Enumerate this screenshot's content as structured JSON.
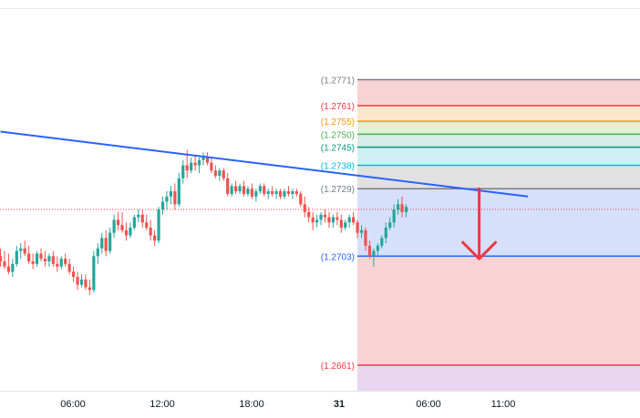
{
  "chart_data": {
    "type": "candlestick",
    "instrument": "",
    "title": "",
    "xlabel": "",
    "ylabel": "",
    "x_axis_labels": [
      "06:00",
      "12:00",
      "18:00",
      "31",
      "06:00",
      "11:00"
    ],
    "ylim": [
      1.2645,
      1.2783
    ],
    "grid": false,
    "colors": {
      "up": "#26a69a",
      "down": "#ef5350",
      "trendline": "#2962ff",
      "arrow": "#f23645",
      "price_line": "#f23645"
    },
    "candles_ohlc": [
      [
        1.2703,
        1.2706,
        1.2699,
        1.2701
      ],
      [
        1.2701,
        1.2705,
        1.2698,
        1.2699
      ],
      [
        1.2699,
        1.2704,
        1.2696,
        1.2697
      ],
      [
        1.2697,
        1.2702,
        1.2695,
        1.27
      ],
      [
        1.27,
        1.2707,
        1.2699,
        1.2705
      ],
      [
        1.2705,
        1.2708,
        1.2702,
        1.2706
      ],
      [
        1.2706,
        1.2709,
        1.2703,
        1.2704
      ],
      [
        1.2704,
        1.2707,
        1.27,
        1.2701
      ],
      [
        1.2701,
        1.2704,
        1.2698,
        1.27
      ],
      [
        1.27,
        1.2705,
        1.2699,
        1.2704
      ],
      [
        1.2704,
        1.2706,
        1.2701,
        1.2702
      ],
      [
        1.2702,
        1.2705,
        1.2699,
        1.2701
      ],
      [
        1.2701,
        1.2704,
        1.2699,
        1.2703
      ],
      [
        1.2703,
        1.2705,
        1.2699,
        1.27
      ],
      [
        1.27,
        1.2703,
        1.2697,
        1.2699
      ],
      [
        1.2699,
        1.2703,
        1.2698,
        1.2702
      ],
      [
        1.2702,
        1.2704,
        1.2699,
        1.27
      ],
      [
        1.27,
        1.2702,
        1.2696,
        1.2697
      ],
      [
        1.2697,
        1.2699,
        1.2693,
        1.2695
      ],
      [
        1.2695,
        1.2697,
        1.269,
        1.2692
      ],
      [
        1.2692,
        1.2696,
        1.2691,
        1.2694
      ],
      [
        1.2694,
        1.2696,
        1.269,
        1.2691
      ],
      [
        1.2691,
        1.2694,
        1.2688,
        1.269
      ],
      [
        1.269,
        1.2705,
        1.2689,
        1.2703
      ],
      [
        1.2703,
        1.2708,
        1.27,
        1.2706
      ],
      [
        1.2706,
        1.2712,
        1.2704,
        1.271
      ],
      [
        1.271,
        1.2713,
        1.2703,
        1.2705
      ],
      [
        1.2705,
        1.2714,
        1.2704,
        1.2712
      ],
      [
        1.2712,
        1.2719,
        1.271,
        1.2717
      ],
      [
        1.2717,
        1.272,
        1.2713,
        1.2715
      ],
      [
        1.2715,
        1.272,
        1.2712,
        1.2713
      ],
      [
        1.2713,
        1.2716,
        1.2709,
        1.2711
      ],
      [
        1.2711,
        1.2716,
        1.271,
        1.2714
      ],
      [
        1.2714,
        1.2719,
        1.2713,
        1.2718
      ],
      [
        1.2718,
        1.2721,
        1.2716,
        1.2719
      ],
      [
        1.2719,
        1.2721,
        1.2714,
        1.2716
      ],
      [
        1.2716,
        1.2719,
        1.2713,
        1.2714
      ],
      [
        1.2714,
        1.2717,
        1.2709,
        1.2711
      ],
      [
        1.2711,
        1.2713,
        1.2707,
        1.2709
      ],
      [
        1.2709,
        1.2722,
        1.2708,
        1.2721
      ],
      [
        1.2721,
        1.2726,
        1.2719,
        1.2724
      ],
      [
        1.2724,
        1.2728,
        1.2721,
        1.2726
      ],
      [
        1.2726,
        1.273,
        1.2723,
        1.2728
      ],
      [
        1.2728,
        1.2731,
        1.2721,
        1.2723
      ],
      [
        1.2723,
        1.2735,
        1.2722,
        1.2733
      ],
      [
        1.2733,
        1.274,
        1.2731,
        1.2738
      ],
      [
        1.2738,
        1.2744,
        1.2733,
        1.2736
      ],
      [
        1.2736,
        1.2741,
        1.2735,
        1.2739
      ],
      [
        1.2739,
        1.2742,
        1.2736,
        1.2738
      ],
      [
        1.2738,
        1.2741,
        1.2735,
        1.274
      ],
      [
        1.274,
        1.2743,
        1.2738,
        1.2741
      ],
      [
        1.2741,
        1.2743,
        1.2738,
        1.2739
      ],
      [
        1.2739,
        1.2741,
        1.2735,
        1.2736
      ],
      [
        1.2736,
        1.2738,
        1.2733,
        1.2734
      ],
      [
        1.2734,
        1.2737,
        1.2732,
        1.2736
      ],
      [
        1.2736,
        1.2737,
        1.2732,
        1.2733
      ],
      [
        1.2733,
        1.2735,
        1.2726,
        1.2727
      ],
      [
        1.2727,
        1.2731,
        1.2726,
        1.273
      ],
      [
        1.273,
        1.2732,
        1.2727,
        1.2728
      ],
      [
        1.2728,
        1.2731,
        1.2727,
        1.273
      ],
      [
        1.273,
        1.2732,
        1.2726,
        1.2727
      ],
      [
        1.2727,
        1.273,
        1.2726,
        1.2729
      ],
      [
        1.2729,
        1.2731,
        1.2725,
        1.2726
      ],
      [
        1.2726,
        1.2729,
        1.2724,
        1.2728
      ],
      [
        1.2728,
        1.2731,
        1.2727,
        1.273
      ],
      [
        1.273,
        1.2731,
        1.2726,
        1.2727
      ],
      [
        1.2727,
        1.2729,
        1.2725,
        1.2728
      ],
      [
        1.2728,
        1.273,
        1.2726,
        1.2727
      ],
      [
        1.2727,
        1.2729,
        1.2725,
        1.2728
      ],
      [
        1.2728,
        1.2729,
        1.2725,
        1.2726
      ],
      [
        1.2726,
        1.2729,
        1.2725,
        1.2728
      ],
      [
        1.2728,
        1.273,
        1.2726,
        1.2727
      ],
      [
        1.2727,
        1.2729,
        1.2725,
        1.2728
      ],
      [
        1.2728,
        1.2729,
        1.2726,
        1.2727
      ],
      [
        1.2727,
        1.2728,
        1.2722,
        1.2723
      ],
      [
        1.2723,
        1.2726,
        1.2718,
        1.272
      ],
      [
        1.272,
        1.2722,
        1.2716,
        1.2718
      ],
      [
        1.2718,
        1.272,
        1.2713,
        1.2716
      ],
      [
        1.2716,
        1.2719,
        1.2714,
        1.2717
      ],
      [
        1.2717,
        1.272,
        1.2715,
        1.2719
      ],
      [
        1.2719,
        1.2721,
        1.2716,
        1.2718
      ],
      [
        1.2718,
        1.272,
        1.2714,
        1.2716
      ],
      [
        1.2716,
        1.2719,
        1.2714,
        1.2718
      ],
      [
        1.2718,
        1.272,
        1.2715,
        1.2717
      ],
      [
        1.2717,
        1.2719,
        1.2712,
        1.2714
      ],
      [
        1.2714,
        1.2717,
        1.2713,
        1.2716
      ],
      [
        1.2716,
        1.2719,
        1.2714,
        1.2718
      ],
      [
        1.2718,
        1.272,
        1.2715,
        1.2716
      ],
      [
        1.2716,
        1.2717,
        1.271,
        1.2712
      ],
      [
        1.2712,
        1.2715,
        1.271,
        1.2713
      ],
      [
        1.2713,
        1.2714,
        1.2705,
        1.2707
      ],
      [
        1.2707,
        1.2709,
        1.2702,
        1.2703
      ],
      [
        1.2703,
        1.2706,
        1.2699,
        1.2705
      ],
      [
        1.2705,
        1.2708,
        1.2703,
        1.2707
      ],
      [
        1.2707,
        1.2711,
        1.2706,
        1.271
      ],
      [
        1.271,
        1.2716,
        1.2708,
        1.2714
      ],
      [
        1.2714,
        1.2718,
        1.2713,
        1.2716
      ],
      [
        1.2716,
        1.2723,
        1.2714,
        1.2721
      ],
      [
        1.2721,
        1.2725,
        1.2719,
        1.2723
      ],
      [
        1.2723,
        1.2726,
        1.2718,
        1.272
      ],
      [
        1.272,
        1.2723,
        1.2718,
        1.2722
      ]
    ],
    "trendline": {
      "x_index": [
        0,
        130
      ],
      "y": [
        1.2751,
        1.2726
      ]
    },
    "current_price": 1.2721,
    "fib_retracement": {
      "x_start_index": 88,
      "levels": [
        {
          "label": "(1.2771)",
          "value": 1.2771,
          "color": "#787b86",
          "label_color": "#787b86",
          "fill_below": "#f8d3d6"
        },
        {
          "label": "(1.2761)",
          "value": 1.2761,
          "color": "#f23645",
          "label_color": "#f23645",
          "fill_below": "#fde7cc"
        },
        {
          "label": "(1.2755)",
          "value": 1.2755,
          "color": "#ff9800",
          "label_color": "#ff9800",
          "fill_below": "#def0d5"
        },
        {
          "label": "(1.2750)",
          "value": 1.275,
          "color": "#4caf50",
          "label_color": "#4caf50",
          "fill_below": "#d4ede6"
        },
        {
          "label": "(1.2745)",
          "value": 1.2745,
          "color": "#089981",
          "label_color": "#089981",
          "fill_below": "#d2f0f3"
        },
        {
          "label": "(1.2738)",
          "value": 1.2738,
          "color": "#00bcd4",
          "label_color": "#00bcd4",
          "fill_below": "#e1e1e2"
        },
        {
          "label": "(1.2729)",
          "value": 1.2729,
          "color": "#787b86",
          "label_color": "#787b86",
          "fill_below": "#d6e0fb"
        },
        {
          "label": "(1.2703)",
          "value": 1.2703,
          "color": "#2962ff",
          "label_color": "#2962ff",
          "fill_below": "#f8d3d6"
        },
        {
          "label": "(1.2661)",
          "value": 1.2661,
          "color": "#f23645",
          "label_color": "#f23645",
          "fill_below": "#ead6f1"
        }
      ]
    },
    "arrow": {
      "direction": "down",
      "x_index": 118,
      "from": 1.2729,
      "to": 1.2702
    }
  }
}
